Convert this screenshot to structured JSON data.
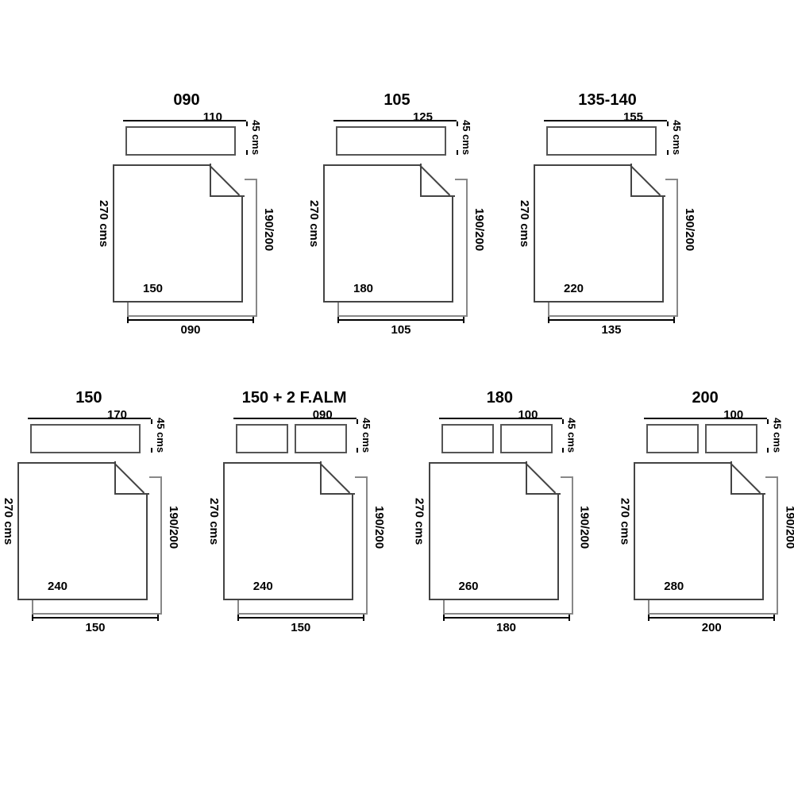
{
  "type": "infographic",
  "background_color": "#ffffff",
  "stroke_color": "#000000",
  "sheet_border_color": "#555555",
  "font_family": "Arial",
  "title_fontsize": 20,
  "label_fontsize": 15,
  "small_label_fontsize": 13,
  "common": {
    "flat_sheet_height": "270 cms",
    "fitted_sheet_height": "190/200",
    "pillow_height": "45 cms"
  },
  "sizes": [
    {
      "id": "090",
      "title": "090",
      "pillow_width": "110",
      "pillow_count": 1,
      "flat_width": "150",
      "fitted_width": "090"
    },
    {
      "id": "105",
      "title": "105",
      "pillow_width": "125",
      "pillow_count": 1,
      "flat_width": "180",
      "fitted_width": "105"
    },
    {
      "id": "135",
      "title": "135-140",
      "pillow_width": "155",
      "pillow_count": 1,
      "flat_width": "220",
      "fitted_width": "135"
    },
    {
      "id": "150",
      "title": "150",
      "pillow_width": "170",
      "pillow_count": 1,
      "flat_width": "240",
      "fitted_width": "150"
    },
    {
      "id": "150b",
      "title": "150 + 2 F.ALM",
      "pillow_width": "090",
      "pillow_count": 2,
      "flat_width": "240",
      "fitted_width": "150"
    },
    {
      "id": "180",
      "title": "180",
      "pillow_width": "100",
      "pillow_count": 2,
      "flat_width": "260",
      "fitted_width": "180"
    },
    {
      "id": "200",
      "title": "200",
      "pillow_width": "100",
      "pillow_count": 2,
      "flat_width": "280",
      "fitted_width": "200"
    }
  ]
}
